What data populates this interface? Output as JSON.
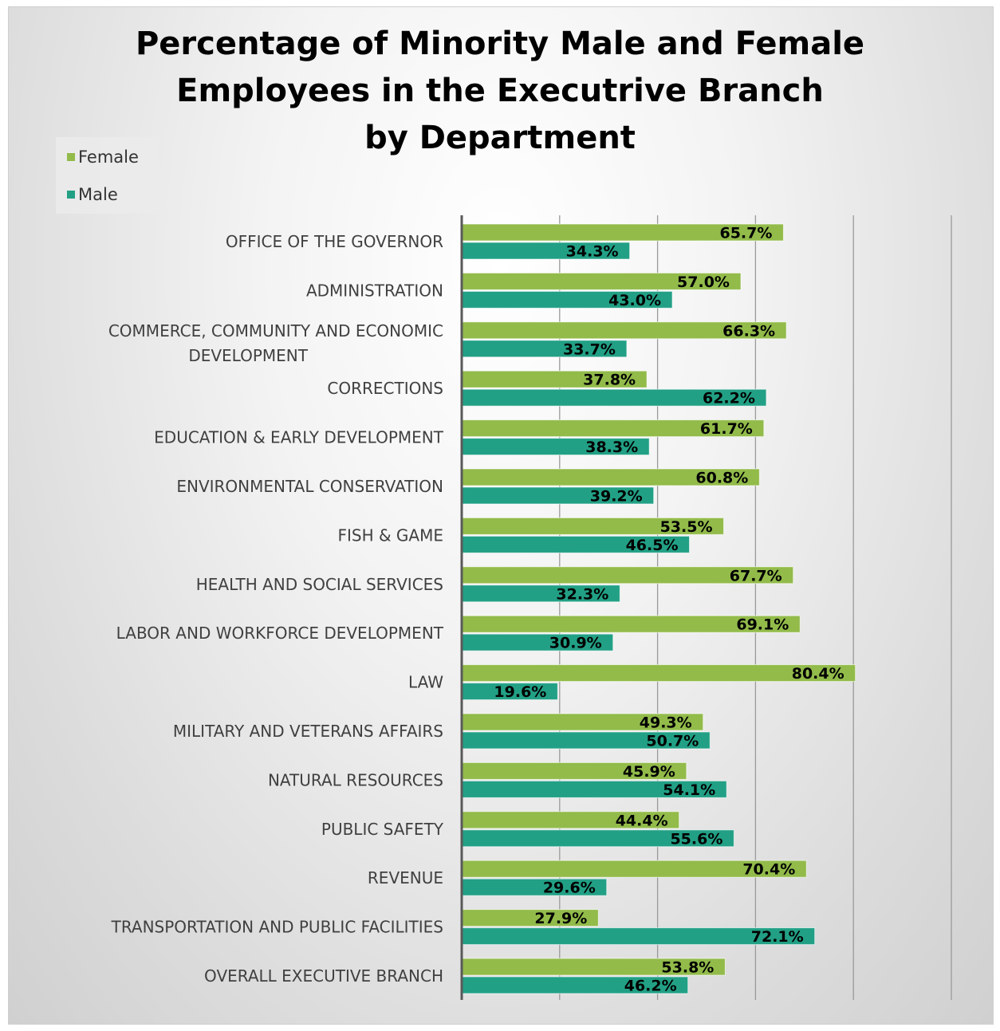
{
  "colors": {
    "female": "#92bb4a",
    "male": "#22a085",
    "axis": "#595959",
    "grid": "#9a9a9a"
  },
  "chart_data": {
    "type": "bar",
    "orientation": "horizontal",
    "title": "Percentage of Minority Male and Female\nEmployees in the Executrive Branch\nby Department",
    "xlim": [
      0,
      100
    ],
    "grid": true,
    "legend_position": "top-left",
    "categories": [
      "OFFICE OF THE GOVERNOR",
      "ADMINISTRATION",
      "COMMERCE, COMMUNITY AND ECONOMIC DEVELOPMENT",
      "CORRECTIONS",
      "EDUCATION & EARLY DEVELOPMENT",
      "ENVIRONMENTAL CONSERVATION",
      "FISH & GAME",
      "HEALTH AND SOCIAL SERVICES",
      "LABOR AND WORKFORCE DEVELOPMENT",
      "LAW",
      "MILITARY AND VETERANS AFFAIRS",
      "NATURAL RESOURCES",
      "PUBLIC SAFETY",
      "REVENUE",
      "TRANSPORTATION AND PUBLIC FACILITIES",
      "OVERALL EXECUTIVE BRANCH"
    ],
    "series": [
      {
        "name": "Female",
        "values": [
          65.7,
          57.0,
          66.3,
          37.8,
          61.7,
          60.8,
          53.5,
          67.7,
          69.1,
          80.4,
          49.3,
          45.9,
          44.4,
          70.4,
          27.9,
          53.8
        ],
        "labels": [
          "65.7%",
          "57.0%",
          "66.3%",
          "37.8%",
          "61.7%",
          "60.8%",
          "53.5%",
          "67.7%",
          "69.1%",
          "80.4%",
          "49.3%",
          "45.9%",
          "44.4%",
          "70.4%",
          "27.9%",
          "53.8%"
        ]
      },
      {
        "name": "Male",
        "values": [
          34.3,
          43.0,
          33.7,
          62.2,
          38.3,
          39.2,
          46.5,
          32.3,
          30.9,
          19.6,
          50.7,
          54.1,
          55.6,
          29.6,
          72.1,
          46.2
        ],
        "labels": [
          "34.3%",
          "43.0%",
          "33.7%",
          "62.2%",
          "38.3%",
          "39.2%",
          "46.5%",
          "32.3%",
          "30.9%",
          "19.6%",
          "50.7%",
          "54.1%",
          "55.6%",
          "29.6%",
          "72.1%",
          "46.2%"
        ]
      }
    ]
  }
}
